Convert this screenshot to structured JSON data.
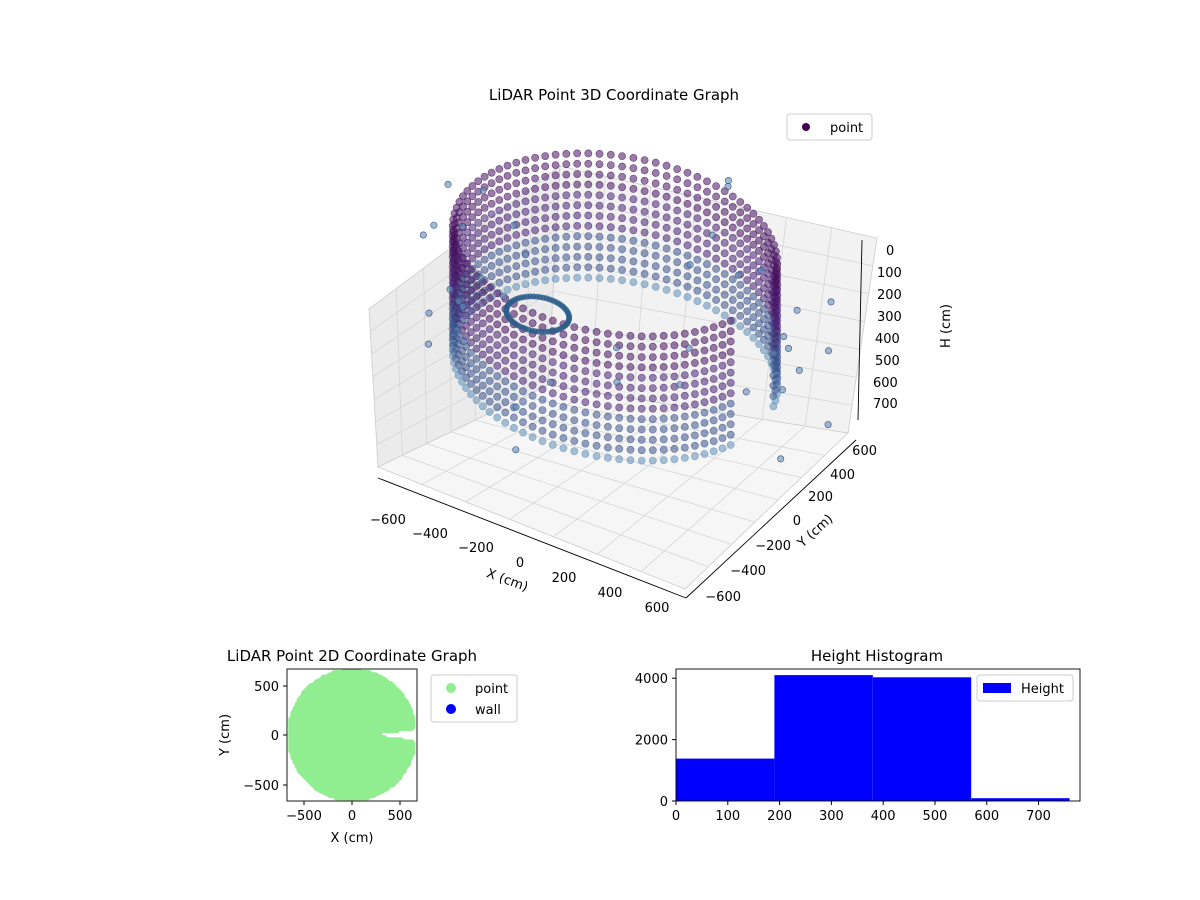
{
  "chart_data": [
    {
      "type": "scatter",
      "title": "LiDAR Point 3D Coordinate Graph",
      "xlabel": "X (cm)",
      "ylabel": "Y (cm)",
      "zlabel": "H (cm)",
      "x_ticks": [
        "−600",
        "−400",
        "−200",
        "0",
        "200",
        "400",
        "600"
      ],
      "y_ticks": [
        "−600",
        "−400",
        "−200",
        "0",
        "200",
        "400",
        "600"
      ],
      "z_ticks": [
        "0",
        "100",
        "200",
        "300",
        "400",
        "500",
        "600",
        "700"
      ],
      "xlim": [
        -650,
        650
      ],
      "ylim": [
        -650,
        650
      ],
      "zlim": [
        0,
        780
      ],
      "z_inverted": true,
      "legend": {
        "entries": [
          "point"
        ],
        "placement": "top-right"
      },
      "colormap": "viridis",
      "colors": {
        "point_legend": "#440154",
        "points_dark": "#46105e",
        "points_mid": "#3b528b",
        "points_light": "#5f8fb6"
      },
      "series": [
        {
          "name": "point",
          "description_shape": "cylindrical wall of points, radius ~620, heights 0–570, with an open notch toward +X"
        }
      ]
    },
    {
      "type": "scatter",
      "title": "LiDAR Point 2D Coordinate Graph",
      "xlabel": "X (cm)",
      "ylabel": "Y (cm)",
      "x_ticks": [
        "−500",
        "0",
        "500"
      ],
      "y_ticks": [
        "500",
        "0",
        "−500"
      ],
      "xlim": [
        -680,
        680
      ],
      "ylim": [
        -680,
        680
      ],
      "legend": {
        "entries": [
          "point",
          "wall"
        ],
        "placement": "outside-right"
      },
      "colors": {
        "point": "#90ee90",
        "wall": "#0000ff"
      },
      "series": [
        {
          "name": "point",
          "shape": "filled disc of radius ~650 with a notch around y≈0 for x>280"
        },
        {
          "name": "wall",
          "values": []
        }
      ]
    },
    {
      "type": "bar",
      "title": "Height Histogram",
      "x_ticks": [
        "0",
        "100",
        "200",
        "300",
        "400",
        "500",
        "600",
        "700"
      ],
      "y_ticks": [
        "0",
        "2000",
        "4000"
      ],
      "xlim": [
        0,
        780
      ],
      "ylim": [
        0,
        4300
      ],
      "legend": {
        "entries": [
          "Height"
        ],
        "placement": "top-right"
      },
      "colors": {
        "bar": "#0000ff"
      },
      "bins": [
        {
          "x0": 0,
          "x1": 190,
          "count": 1380
        },
        {
          "x0": 190,
          "x1": 380,
          "count": 4100
        },
        {
          "x0": 380,
          "x1": 570,
          "count": 4030
        },
        {
          "x0": 570,
          "x1": 760,
          "count": 90
        }
      ]
    }
  ]
}
